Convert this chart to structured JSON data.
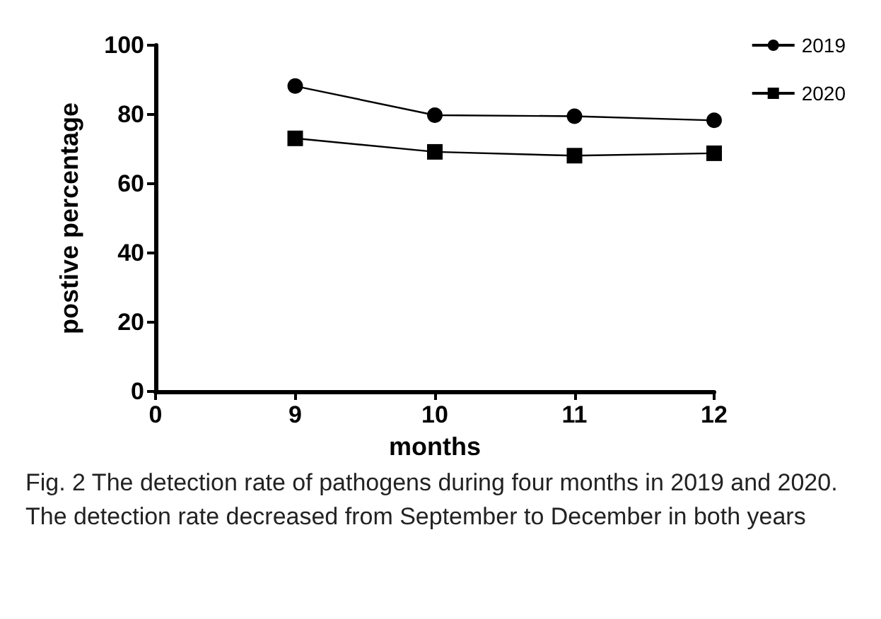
{
  "chart_data": {
    "type": "line",
    "xlabel": "months",
    "ylabel": "postive percentage",
    "categories": [
      "0",
      "9",
      "10",
      "11",
      "12"
    ],
    "series": [
      {
        "name": "2019",
        "color": "#000000",
        "marker": "circle",
        "values": [
          null,
          88.2,
          79.8,
          79.5,
          78.3
        ]
      },
      {
        "name": "2020",
        "color": "#000000",
        "marker": "square",
        "values": [
          null,
          73.1,
          69.2,
          68.1,
          68.8
        ]
      }
    ],
    "ylim": [
      0,
      100
    ],
    "yticks": [
      0,
      20,
      40,
      60,
      80,
      100
    ],
    "grid": false,
    "legend": "top right",
    "line_style": "solid",
    "annotations": [
      "Fig. 2  The detection rate of pathogens during four months in 2019 and 2020. The detection rate decreased from September to December in both years"
    ]
  }
}
